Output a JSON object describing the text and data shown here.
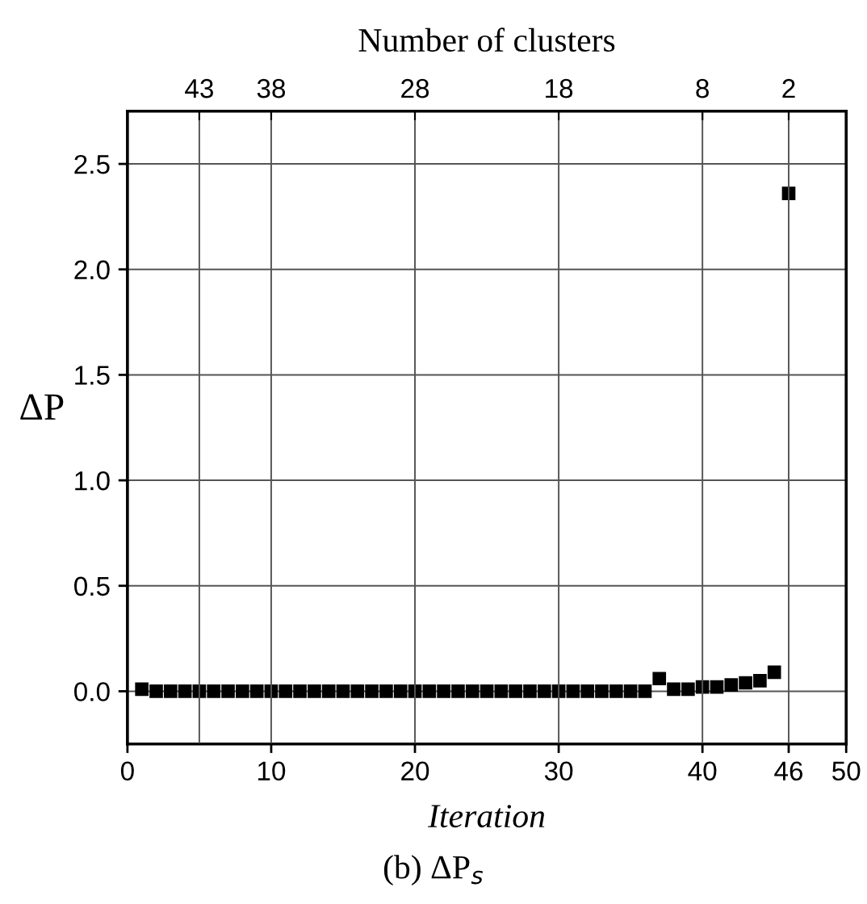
{
  "chart_data": {
    "type": "scatter",
    "xlabel": "Iteration",
    "ylabel": "ΔP",
    "x2label": "Number of clusters",
    "annotations": [
      "(b) ΔP$_{s}$"
    ],
    "x": [
      1,
      2,
      3,
      4,
      5,
      6,
      7,
      8,
      9,
      10,
      11,
      12,
      13,
      14,
      15,
      16,
      17,
      18,
      19,
      20,
      21,
      22,
      23,
      24,
      25,
      26,
      27,
      28,
      29,
      30,
      31,
      32,
      33,
      34,
      35,
      36,
      37,
      38,
      39,
      40,
      41,
      42,
      43,
      44,
      45,
      46
    ],
    "series": [
      {
        "color": "#000000",
        "values": [
          0.01,
          0.0,
          0.0,
          0.0,
          0.0,
          0.0,
          0.0,
          0.0,
          0.0,
          0.0,
          0.0,
          0.0,
          0.0,
          0.0,
          0.0,
          0.0,
          0.0,
          0.0,
          0.0,
          0.0,
          0.0,
          0.0,
          0.0,
          0.0,
          0.0,
          0.0,
          0.0,
          0.0,
          0.0,
          0.0,
          0.0,
          0.0,
          0.0,
          0.0,
          0.0,
          0.0,
          0.06,
          0.01,
          0.01,
          0.02,
          0.02,
          0.03,
          0.04,
          0.05,
          0.09,
          2.36
        ]
      }
    ],
    "marker": "square",
    "xlim": [
      0,
      50
    ],
    "xticks": [
      0,
      10,
      20,
      30,
      40,
      46,
      50
    ],
    "x2lim": [
      48,
      -2
    ],
    "x2ticks": [
      43,
      38,
      28,
      18,
      8,
      2
    ],
    "ylim": [
      -0.25,
      2.75
    ],
    "yticks": [
      {
        "value": 0,
        "label": "0.0"
      },
      {
        "value": 0.5,
        "label": "0.5"
      },
      {
        "value": 1,
        "label": "1.0"
      },
      {
        "value": 1.5,
        "label": "1.5"
      },
      {
        "value": 2,
        "label": "2.0"
      },
      {
        "value": 2.5,
        "label": "2.5"
      }
    ],
    "grid": true
  }
}
